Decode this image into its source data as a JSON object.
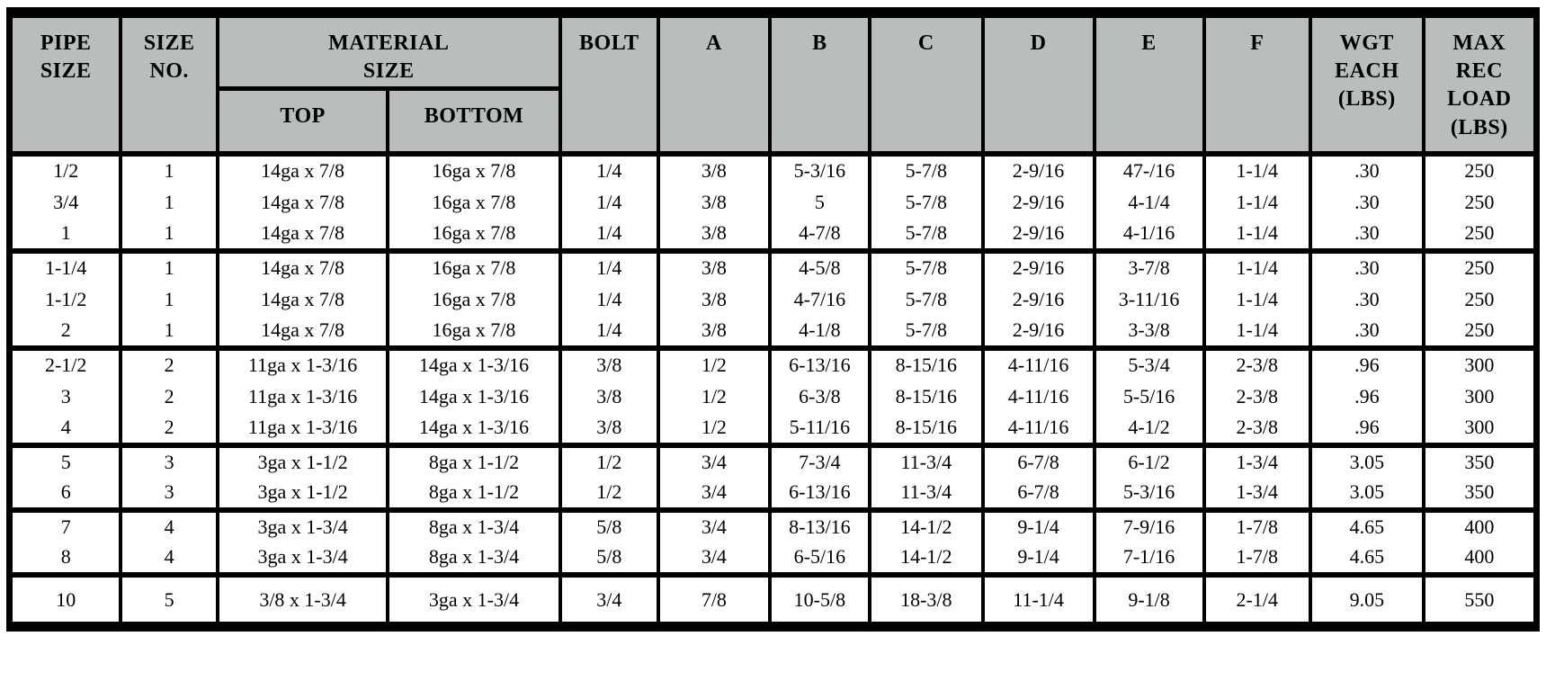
{
  "colors": {
    "header_bg": "#b9bdbc",
    "border": "#000000",
    "row_bg": "#ffffff"
  },
  "table": {
    "header": {
      "pipe_size": "PIPE\nSIZE",
      "size_no": "SIZE\nNO.",
      "material_size": "MATERIAL\nSIZE",
      "top": "TOP",
      "bottom": "BOTTOM",
      "bolt": "BOLT",
      "a": "A",
      "b": "B",
      "c": "C",
      "d": "D",
      "e": "E",
      "f": "F",
      "wgt_each": "WGT\nEACH\n(LBS)",
      "max_rec_load": "MAX\nREC\nLOAD\n(LBS)"
    },
    "groups": [
      [
        [
          "1/2",
          "1",
          "14ga x 7/8",
          "16ga x 7/8",
          "1/4",
          "3/8",
          "5-3/16",
          "5-7/8",
          "2-9/16",
          "47-/16",
          "1-1/4",
          ".30",
          "250"
        ],
        [
          "3/4",
          "1",
          "14ga x 7/8",
          "16ga x 7/8",
          "1/4",
          "3/8",
          "5",
          "5-7/8",
          "2-9/16",
          "4-1/4",
          "1-1/4",
          ".30",
          "250"
        ],
        [
          "1",
          "1",
          "14ga x 7/8",
          "16ga x 7/8",
          "1/4",
          "3/8",
          "4-7/8",
          "5-7/8",
          "2-9/16",
          "4-1/16",
          "1-1/4",
          ".30",
          "250"
        ]
      ],
      [
        [
          "1-1/4",
          "1",
          "14ga x 7/8",
          "16ga x 7/8",
          "1/4",
          "3/8",
          "4-5/8",
          "5-7/8",
          "2-9/16",
          "3-7/8",
          "1-1/4",
          ".30",
          "250"
        ],
        [
          "1-1/2",
          "1",
          "14ga x 7/8",
          "16ga x 7/8",
          "1/4",
          "3/8",
          "4-7/16",
          "5-7/8",
          "2-9/16",
          "3-11/16",
          "1-1/4",
          ".30",
          "250"
        ],
        [
          "2",
          "1",
          "14ga x 7/8",
          "16ga x 7/8",
          "1/4",
          "3/8",
          "4-1/8",
          "5-7/8",
          "2-9/16",
          "3-3/8",
          "1-1/4",
          ".30",
          "250"
        ]
      ],
      [
        [
          "2-1/2",
          "2",
          "11ga x 1-3/16",
          "14ga x 1-3/16",
          "3/8",
          "1/2",
          "6-13/16",
          "8-15/16",
          "4-11/16",
          "5-3/4",
          "2-3/8",
          ".96",
          "300"
        ],
        [
          "3",
          "2",
          "11ga x 1-3/16",
          "14ga x 1-3/16",
          "3/8",
          "1/2",
          "6-3/8",
          "8-15/16",
          "4-11/16",
          "5-5/16",
          "2-3/8",
          ".96",
          "300"
        ],
        [
          "4",
          "2",
          "11ga x 1-3/16",
          "14ga x 1-3/16",
          "3/8",
          "1/2",
          "5-11/16",
          "8-15/16",
          "4-11/16",
          "4-1/2",
          "2-3/8",
          ".96",
          "300"
        ]
      ],
      [
        [
          "5",
          "3",
          "3ga x 1-1/2",
          "8ga x 1-1/2",
          "1/2",
          "3/4",
          "7-3/4",
          "11-3/4",
          "6-7/8",
          "6-1/2",
          "1-3/4",
          "3.05",
          "350"
        ],
        [
          "6",
          "3",
          "3ga x 1-1/2",
          "8ga x 1-1/2",
          "1/2",
          "3/4",
          "6-13/16",
          "11-3/4",
          "6-7/8",
          "5-3/16",
          "1-3/4",
          "3.05",
          "350"
        ]
      ],
      [
        [
          "7",
          "4",
          "3ga x 1-3/4",
          "8ga x 1-3/4",
          "5/8",
          "3/4",
          "8-13/16",
          "14-1/2",
          "9-1/4",
          "7-9/16",
          "1-7/8",
          "4.65",
          "400"
        ],
        [
          "8",
          "4",
          "3ga x 1-3/4",
          "8ga x 1-3/4",
          "5/8",
          "3/4",
          "6-5/16",
          "14-1/2",
          "9-1/4",
          "7-1/16",
          "1-7/8",
          "4.65",
          "400"
        ]
      ],
      [
        [
          "10",
          "5",
          "3/8 x 1-3/4",
          "3ga x 1-3/4",
          "3/4",
          "7/8",
          "10-5/8",
          "18-3/8",
          "11-1/4",
          "9-1/8",
          "2-1/4",
          "9.05",
          "550"
        ]
      ]
    ]
  }
}
